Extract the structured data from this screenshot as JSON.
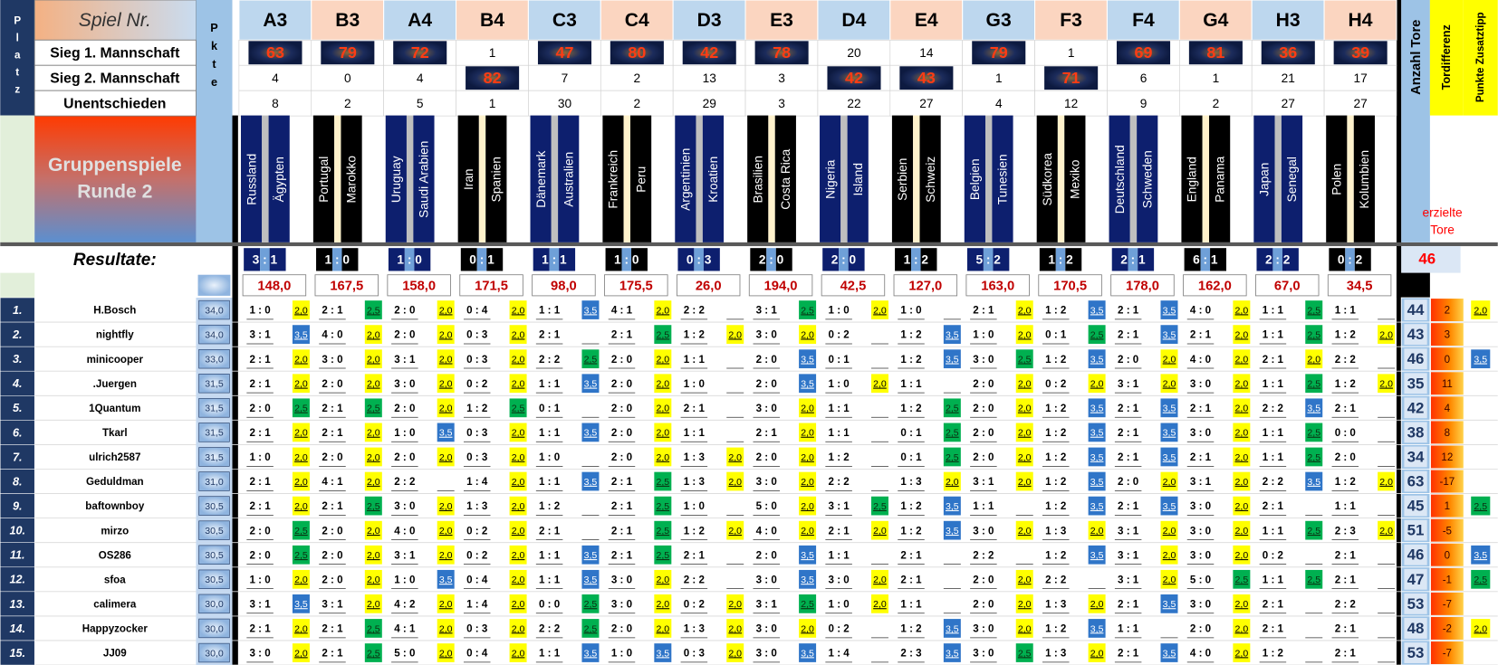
{
  "header": {
    "platz": "Platz",
    "spiel_nr": "Spiel Nr.",
    "pkte": "Pkte",
    "round_lines": [
      "Gruppenspiele",
      "Runde 2"
    ],
    "resultate": "Resultate:",
    "anzahl_tore": "Anzahl Tore",
    "tordifferenz": "Tordifferenz",
    "zusatztipp": "Punkte Zusatztipp",
    "erzielte_tore": "erzielte Tore",
    "total_goals": 46
  },
  "count_rows": [
    {
      "label": "Sieg 1. Mannschaft",
      "values": [
        63,
        79,
        72,
        1,
        47,
        80,
        42,
        78,
        20,
        14,
        79,
        1,
        69,
        81,
        36,
        39
      ]
    },
    {
      "label": "Sieg 2. Mannschaft",
      "values": [
        4,
        0,
        4,
        82,
        7,
        2,
        13,
        3,
        42,
        43,
        1,
        71,
        6,
        1,
        21,
        17
      ]
    },
    {
      "label": "Unentschieden",
      "values": [
        8,
        2,
        5,
        1,
        30,
        2,
        29,
        3,
        22,
        27,
        4,
        12,
        9,
        2,
        27,
        27
      ]
    }
  ],
  "matches": [
    {
      "id": "A3",
      "home": "Russland",
      "away": "Ägypten",
      "result": "3 : 1",
      "total": "148,0"
    },
    {
      "id": "B3",
      "home": "Portugal",
      "away": "Marokko",
      "result": "1 : 0",
      "total": "167,5"
    },
    {
      "id": "A4",
      "home": "Uruguay",
      "away": "Saudi Arabien",
      "result": "1 : 0",
      "total": "158,0"
    },
    {
      "id": "B4",
      "home": "Iran",
      "away": "Spanien",
      "result": "0 : 1",
      "total": "171,5"
    },
    {
      "id": "C3",
      "home": "Dänemark",
      "away": "Australien",
      "result": "1 : 1",
      "total": "98,0"
    },
    {
      "id": "C4",
      "home": "Frankreich",
      "away": "Peru",
      "result": "1 : 0",
      "total": "175,5"
    },
    {
      "id": "D3",
      "home": "Argentinien",
      "away": "Kroatien",
      "result": "0 : 3",
      "total": "26,0"
    },
    {
      "id": "E3",
      "home": "Brasilien",
      "away": "Costa Rica",
      "result": "2 : 0",
      "total": "194,0"
    },
    {
      "id": "D4",
      "home": "Nigeria",
      "away": "Island",
      "result": "2 : 0",
      "total": "42,5"
    },
    {
      "id": "E4",
      "home": "Serbien",
      "away": "Schweiz",
      "result": "1 : 2",
      "total": "127,0"
    },
    {
      "id": "G3",
      "home": "Belgien",
      "away": "Tunesien",
      "result": "5 : 2",
      "total": "163,0"
    },
    {
      "id": "F3",
      "home": "Südkorea",
      "away": "Mexiko",
      "result": "1 : 2",
      "total": "170,5"
    },
    {
      "id": "F4",
      "home": "Deutschland",
      "away": "Schweden",
      "result": "2 : 1",
      "total": "178,0"
    },
    {
      "id": "G4",
      "home": "England",
      "away": "Panama",
      "result": "6 : 1",
      "total": "162,0"
    },
    {
      "id": "H3",
      "home": "Japan",
      "away": "Senegal",
      "result": "2 : 2",
      "total": "67,0"
    },
    {
      "id": "H4",
      "home": "Polen",
      "away": "Kolumbien",
      "result": "0 : 2",
      "total": "34,5"
    }
  ],
  "point_colors": {
    "2,0": {
      "fill": "#ffff00",
      "text": "#000000"
    },
    "2,5": {
      "fill": "#00b050",
      "text": "#0b2e10"
    },
    "3,5": {
      "fill": "#2f75c8",
      "text": "#ffffff"
    }
  },
  "players": [
    {
      "rank": "1.",
      "name": "H.Bosch",
      "pkte": "34,0",
      "tips": [
        "1 : 0",
        "2 : 1",
        "2 : 0",
        "0 : 4",
        "1 : 1",
        "4 : 1",
        "2 : 2",
        "3 : 1",
        "1 : 0",
        "1 : 0",
        "2 : 1",
        "1 : 2",
        "2 : 1",
        "4 : 0",
        "1 : 1",
        "1 : 1"
      ],
      "points": [
        "2,0",
        "2,5",
        "2,0",
        "2,0",
        "3,5",
        "2,0",
        null,
        "2,5",
        "2,0",
        null,
        "2,0",
        "3,5",
        "3,5",
        "2,0",
        "2,5",
        null
      ],
      "goals": 44,
      "diff": 2,
      "extra": "2,0"
    },
    {
      "rank": "2.",
      "name": "nightfly",
      "pkte": "34,0",
      "tips": [
        "3 : 1",
        "4 : 0",
        "2 : 0",
        "0 : 3",
        "2 : 1",
        "2 : 1",
        "1 : 2",
        "3 : 0",
        "0 : 2",
        "1 : 2",
        "1 : 0",
        "0 : 1",
        "2 : 1",
        "2 : 1",
        "1 : 1",
        "1 : 2"
      ],
      "points": [
        "3,5",
        "2,0",
        "2,0",
        "2,0",
        null,
        "2,5",
        "2,0",
        "2,0",
        null,
        "3,5",
        "2,0",
        "2,5",
        "3,5",
        "2,0",
        "2,5",
        "2,0"
      ],
      "goals": 43,
      "diff": 3,
      "extra": null
    },
    {
      "rank": "3.",
      "name": "minicooper",
      "pkte": "33,0",
      "tips": [
        "2 : 1",
        "3 : 0",
        "3 : 1",
        "0 : 3",
        "2 : 2",
        "2 : 0",
        "1 : 1",
        "2 : 0",
        "0 : 1",
        "1 : 2",
        "3 : 0",
        "1 : 2",
        "2 : 0",
        "4 : 0",
        "2 : 1",
        "2 : 2"
      ],
      "points": [
        "2,0",
        "2,0",
        "2,0",
        "2,0",
        "2,5",
        "2,0",
        null,
        "3,5",
        null,
        "3,5",
        "2,5",
        "3,5",
        "2,0",
        "2,0",
        "2,0",
        null
      ],
      "goals": 46,
      "diff": 0,
      "extra": "3,5"
    },
    {
      "rank": "4.",
      "name": ".Juergen",
      "pkte": "31,5",
      "tips": [
        "2 : 1",
        "2 : 0",
        "3 : 0",
        "0 : 2",
        "1 : 1",
        "2 : 0",
        "1 : 0",
        "2 : 0",
        "1 : 0",
        "1 : 1",
        "2 : 0",
        "0 : 2",
        "3 : 1",
        "3 : 0",
        "1 : 1",
        "1 : 2"
      ],
      "points": [
        "2,0",
        "2,0",
        "2,0",
        "2,0",
        "3,5",
        "2,0",
        null,
        "3,5",
        "2,0",
        null,
        "2,0",
        "2,0",
        "2,0",
        "2,0",
        "2,5",
        "2,0"
      ],
      "goals": 35,
      "diff": 11,
      "extra": null
    },
    {
      "rank": "5.",
      "name": "1Quantum",
      "pkte": "31,5",
      "tips": [
        "2 : 0",
        "2 : 1",
        "2 : 0",
        "1 : 2",
        "0 : 1",
        "2 : 0",
        "2 : 1",
        "3 : 0",
        "1 : 1",
        "1 : 2",
        "2 : 0",
        "1 : 2",
        "2 : 1",
        "2 : 1",
        "2 : 2",
        "2 : 1"
      ],
      "points": [
        "2,5",
        "2,5",
        "2,0",
        "2,5",
        null,
        "2,0",
        null,
        "2,0",
        null,
        "2,5",
        "2,0",
        "3,5",
        "3,5",
        "2,0",
        "3,5",
        null
      ],
      "goals": 42,
      "diff": 4,
      "extra": null
    },
    {
      "rank": "6.",
      "name": "Tkarl",
      "pkte": "31,5",
      "tips": [
        "2 : 1",
        "2 : 1",
        "1 : 0",
        "0 : 3",
        "1 : 1",
        "2 : 0",
        "1 : 1",
        "2 : 1",
        "1 : 1",
        "0 : 1",
        "2 : 0",
        "1 : 2",
        "2 : 1",
        "3 : 0",
        "1 : 1",
        "0 : 0"
      ],
      "points": [
        "2,0",
        "2,0",
        "3,5",
        "2,0",
        "3,5",
        "2,0",
        null,
        "2,0",
        null,
        "2,5",
        "2,0",
        "3,5",
        "3,5",
        "2,0",
        "2,5",
        null
      ],
      "goals": 38,
      "diff": 8,
      "extra": null
    },
    {
      "rank": "7.",
      "name": "ulrich2587",
      "pkte": "31,5",
      "tips": [
        "1 : 0",
        "2 : 0",
        "2 : 0",
        "0 : 3",
        "1 : 0",
        "2 : 0",
        "1 : 3",
        "2 : 0",
        "1 : 2",
        "0 : 1",
        "2 : 0",
        "1 : 2",
        "2 : 1",
        "2 : 1",
        "1 : 1",
        "2 : 0"
      ],
      "points": [
        "2,0",
        "2,0",
        "2,0",
        "2,0",
        null,
        "2,0",
        "2,0",
        "2,0",
        null,
        "2,5",
        "2,0",
        "3,5",
        "3,5",
        "2,0",
        "2,5",
        null
      ],
      "goals": 34,
      "diff": 12,
      "extra": null
    },
    {
      "rank": "8.",
      "name": "Geduldman",
      "pkte": "31,0",
      "tips": [
        "2 : 1",
        "4 : 1",
        "2 : 2",
        "1 : 4",
        "1 : 1",
        "2 : 1",
        "1 : 3",
        "3 : 0",
        "2 : 2",
        "1 : 3",
        "3 : 1",
        "1 : 2",
        "2 : 0",
        "3 : 1",
        "2 : 2",
        "1 : 2"
      ],
      "points": [
        "2,0",
        "2,0",
        null,
        "2,0",
        "3,5",
        "2,5",
        "2,0",
        "2,0",
        null,
        "2,0",
        "2,0",
        "3,5",
        "2,0",
        "2,0",
        "3,5",
        "2,0"
      ],
      "goals": 63,
      "diff": -17,
      "extra": null
    },
    {
      "rank": "9.",
      "name": "baftownboy",
      "pkte": "30,5",
      "tips": [
        "2 : 1",
        "2 : 1",
        "3 : 0",
        "1 : 3",
        "1 : 2",
        "2 : 1",
        "1 : 0",
        "5 : 0",
        "3 : 1",
        "1 : 2",
        "1 : 1",
        "1 : 2",
        "2 : 1",
        "3 : 0",
        "2 : 1",
        "1 : 1"
      ],
      "points": [
        "2,0",
        "2,5",
        "2,0",
        "2,0",
        null,
        "2,5",
        null,
        "2,0",
        "2,5",
        "3,5",
        null,
        "3,5",
        "3,5",
        "2,0",
        null,
        null
      ],
      "goals": 45,
      "diff": 1,
      "extra": "2,5"
    },
    {
      "rank": "10.",
      "name": "mirzo",
      "pkte": "30,5",
      "tips": [
        "2 : 0",
        "2 : 0",
        "4 : 0",
        "0 : 2",
        "2 : 1",
        "2 : 1",
        "1 : 2",
        "4 : 0",
        "2 : 1",
        "1 : 2",
        "3 : 0",
        "1 : 3",
        "3 : 1",
        "3 : 0",
        "1 : 1",
        "2 : 3"
      ],
      "points": [
        "2,5",
        "2,0",
        "2,0",
        "2,0",
        null,
        "2,5",
        "2,0",
        "2,0",
        "2,0",
        "3,5",
        "2,0",
        "2,0",
        "2,0",
        "2,0",
        "2,5",
        "2,0"
      ],
      "goals": 51,
      "diff": -5,
      "extra": null
    },
    {
      "rank": "11.",
      "name": "OS286",
      "pkte": "30,5",
      "tips": [
        "2 : 0",
        "2 : 0",
        "3 : 1",
        "0 : 2",
        "1 : 1",
        "2 : 1",
        "2 : 1",
        "2 : 0",
        "1 : 1",
        "2 : 1",
        "2 : 2",
        "1 : 2",
        "3 : 1",
        "3 : 0",
        "0 : 2",
        "2 : 1"
      ],
      "points": [
        "2,5",
        "2,0",
        "2,0",
        "2,0",
        "3,5",
        "2,5",
        null,
        "3,5",
        null,
        null,
        null,
        "3,5",
        "2,0",
        "2,0",
        null,
        null
      ],
      "goals": 46,
      "diff": 0,
      "extra": "3,5"
    },
    {
      "rank": "12.",
      "name": "sfoa",
      "pkte": "30,5",
      "tips": [
        "1 : 0",
        "2 : 0",
        "1 : 0",
        "0 : 4",
        "1 : 1",
        "3 : 0",
        "2 : 2",
        "3 : 0",
        "3 : 0",
        "2 : 1",
        "2 : 0",
        "2 : 2",
        "3 : 1",
        "5 : 0",
        "1 : 1",
        "2 : 1"
      ],
      "points": [
        "2,0",
        "2,0",
        "3,5",
        "2,0",
        "3,5",
        "2,0",
        null,
        "3,5",
        "2,0",
        null,
        "2,0",
        null,
        "2,0",
        "2,5",
        "2,5",
        null
      ],
      "goals": 47,
      "diff": -1,
      "extra": "2,5"
    },
    {
      "rank": "13.",
      "name": "calimera",
      "pkte": "30,0",
      "tips": [
        "3 : 1",
        "3 : 1",
        "4 : 2",
        "1 : 4",
        "0 : 0",
        "3 : 0",
        "0 : 2",
        "3 : 1",
        "1 : 0",
        "1 : 1",
        "2 : 0",
        "1 : 3",
        "2 : 1",
        "3 : 0",
        "2 : 1",
        "2 : 2"
      ],
      "points": [
        "3,5",
        "2,0",
        "2,0",
        "2,0",
        "2,5",
        "2,0",
        "2,0",
        "2,5",
        "2,0",
        null,
        "2,0",
        "2,0",
        "3,5",
        "2,0",
        null,
        null
      ],
      "goals": 53,
      "diff": -7,
      "extra": null
    },
    {
      "rank": "14.",
      "name": "Happyzocker",
      "pkte": "30,0",
      "tips": [
        "2 : 1",
        "2 : 1",
        "4 : 1",
        "0 : 3",
        "2 : 2",
        "2 : 0",
        "1 : 3",
        "3 : 0",
        "0 : 2",
        "1 : 2",
        "3 : 0",
        "1 : 2",
        "1 : 1",
        "2 : 0",
        "2 : 1",
        "2 : 1"
      ],
      "points": [
        "2,0",
        "2,5",
        "2,0",
        "2,0",
        "2,5",
        "2,0",
        "2,0",
        "2,0",
        null,
        "3,5",
        "2,0",
        "3,5",
        null,
        "2,0",
        null,
        null
      ],
      "goals": 48,
      "diff": -2,
      "extra": "2,0"
    },
    {
      "rank": "15.",
      "name": "JJ09",
      "pkte": "30,0",
      "tips": [
        "3 : 0",
        "2 : 1",
        "5 : 0",
        "0 : 4",
        "1 : 1",
        "1 : 0",
        "0 : 3",
        "3 : 0",
        "1 : 4",
        "2 : 3",
        "3 : 0",
        "1 : 3",
        "2 : 1",
        "4 : 0",
        "1 : 2",
        "2 : 1"
      ],
      "points": [
        "2,0",
        "2,5",
        "2,0",
        "2,0",
        "3,5",
        "3,5",
        "2,0",
        "3,5",
        null,
        "3,5",
        "2,5",
        "2,0",
        "3,5",
        "2,0",
        null,
        null
      ],
      "goals": 53,
      "diff": -7,
      "extra": null
    }
  ]
}
